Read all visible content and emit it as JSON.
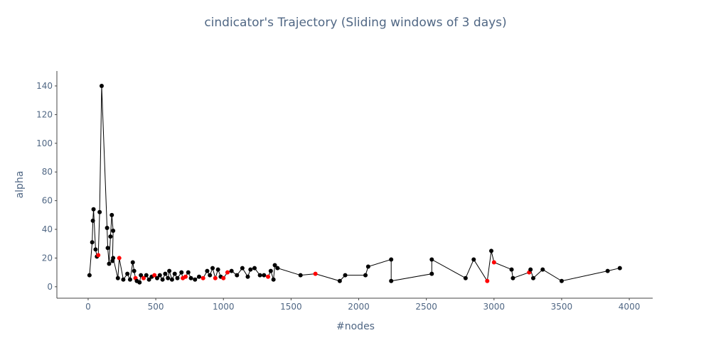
{
  "chart_data": {
    "type": "scatter",
    "mode": "lines+markers",
    "title": "cindicator's Trajectory (Sliding windows of 3 days)",
    "x_label": "#nodes",
    "y_label": "alpha",
    "line_color": "#000000",
    "x": [
      10,
      30,
      35,
      40,
      55,
      65,
      75,
      85,
      100,
      140,
      145,
      155,
      165,
      175,
      185,
      180,
      185,
      220,
      230,
      260,
      290,
      310,
      330,
      340,
      350,
      360,
      380,
      390,
      410,
      430,
      450,
      470,
      490,
      510,
      530,
      550,
      570,
      590,
      600,
      620,
      640,
      660,
      690,
      700,
      720,
      740,
      760,
      790,
      820,
      850,
      880,
      900,
      920,
      940,
      960,
      980,
      1000,
      1030,
      1060,
      1100,
      1140,
      1180,
      1200,
      1230,
      1270,
      1300,
      1330,
      1350,
      1370,
      1380,
      1400,
      1570,
      1680,
      1860,
      1900,
      2050,
      2070,
      2240,
      2240,
      2540,
      2540,
      2790,
      2850,
      2950,
      2980,
      3000,
      3130,
      3140,
      3260,
      3270,
      3290,
      3360,
      3500,
      3840,
      3930
    ],
    "values": [
      8,
      31,
      46,
      54,
      26,
      21,
      22,
      52,
      140,
      41,
      27,
      16,
      35,
      50,
      39,
      18,
      20,
      6,
      20,
      5,
      9,
      5,
      17,
      11,
      6,
      4,
      3,
      8,
      6,
      8,
      5,
      7,
      8,
      6,
      8,
      5,
      9,
      6,
      11,
      5,
      9,
      6,
      10,
      6,
      7,
      10,
      6,
      5,
      7,
      6,
      11,
      8,
      13,
      6,
      12,
      7,
      6,
      10,
      11,
      8,
      13,
      7,
      12,
      13,
      8,
      8,
      7,
      11,
      5,
      15,
      13,
      8,
      9,
      4,
      8,
      8,
      14,
      19,
      4,
      9,
      19,
      6,
      19,
      4,
      25,
      17,
      12,
      6,
      10,
      12,
      6,
      12,
      4,
      11,
      13
    ],
    "colors": [
      "black",
      "black",
      "black",
      "black",
      "black",
      "black",
      "red",
      "black",
      "black",
      "black",
      "black",
      "black",
      "black",
      "black",
      "black",
      "black",
      "black",
      "black",
      "red",
      "black",
      "black",
      "black",
      "black",
      "black",
      "red",
      "black",
      "black",
      "black",
      "red",
      "black",
      "black",
      "black",
      "red",
      "black",
      "black",
      "black",
      "black",
      "black",
      "black",
      "black",
      "black",
      "black",
      "black",
      "red",
      "red",
      "black",
      "black",
      "black",
      "black",
      "red",
      "black",
      "black",
      "black",
      "red",
      "black",
      "black",
      "red",
      "red",
      "black",
      "black",
      "black",
      "black",
      "black",
      "black",
      "black",
      "black",
      "red",
      "black",
      "black",
      "black",
      "black",
      "black",
      "red",
      "black",
      "black",
      "black",
      "black",
      "black",
      "black",
      "black",
      "black",
      "black",
      "black",
      "red",
      "black",
      "red",
      "black",
      "black",
      "red",
      "black",
      "black",
      "black",
      "black",
      "black",
      "black"
    ],
    "xlim": [
      -231,
      4173
    ],
    "ylim": [
      -8,
      150.4
    ],
    "xticks": [
      0,
      500,
      1000,
      1500,
      2000,
      2500,
      3000,
      3500,
      4000
    ],
    "yticks": [
      0,
      20,
      40,
      60,
      80,
      100,
      120,
      140
    ]
  }
}
